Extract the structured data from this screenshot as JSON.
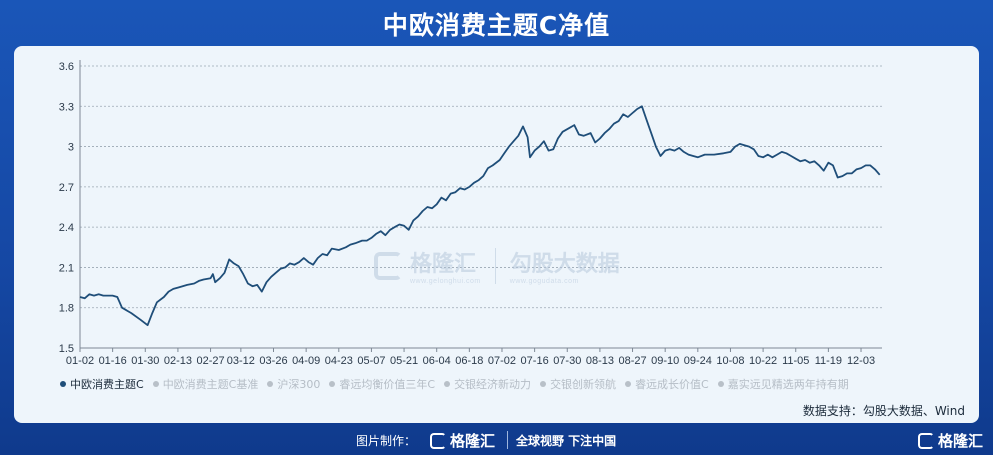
{
  "header": {
    "title": "中欧消费主题C净值"
  },
  "watermark": {
    "brand": "格隆汇",
    "brand_url": "www.gelonghui.com",
    "brand2": "勾股大数据",
    "brand2_url": "www.gogudata.com"
  },
  "legend": [
    {
      "label": "中欧消费主题C",
      "active": true
    },
    {
      "label": "中欧消费主题C基准",
      "active": false
    },
    {
      "label": "沪深300",
      "active": false
    },
    {
      "label": "睿远均衡价值三年C",
      "active": false
    },
    {
      "label": "交银经济新动力",
      "active": false
    },
    {
      "label": "交银创新领航",
      "active": false
    },
    {
      "label": "睿远成长价值C",
      "active": false
    },
    {
      "label": "嘉实远见精选两年持有期",
      "active": false
    }
  ],
  "source": "数据支持：勾股大数据、Wind",
  "footer": {
    "made_by": "图片制作：",
    "brand": "格隆汇",
    "slogan": "全球视野 下注中国",
    "corner_brand": "格隆汇"
  },
  "colors": {
    "line": "#1f4e79",
    "grid": "#9aa6b2",
    "accent": "#1a56b8"
  },
  "chart_data": {
    "type": "line",
    "title": "中欧消费主题C净值",
    "ylim": [
      1.5,
      3.6
    ],
    "yticks": [
      "1.5",
      "1.8",
      "2.1",
      "2.4",
      "2.7",
      "3",
      "3.3",
      "3.6"
    ],
    "ytick_values": [
      1.5,
      1.8,
      2.1,
      2.4,
      2.7,
      3.0,
      3.3,
      3.6
    ],
    "xticks": [
      "01-02",
      "01-16",
      "01-30",
      "02-13",
      "02-27",
      "03-12",
      "03-26",
      "04-09",
      "04-23",
      "05-07",
      "05-21",
      "06-04",
      "06-18",
      "07-02",
      "07-16",
      "07-30",
      "08-13",
      "08-27",
      "09-10",
      "09-24",
      "10-08",
      "10-22",
      "11-05",
      "11-19",
      "12-03"
    ],
    "x_range": [
      "01-02",
      "12-12"
    ],
    "grid": "horizontal dashed",
    "series": [
      {
        "name": "中欧消费主题C",
        "points": [
          [
            "01-02",
            1.88
          ],
          [
            "01-04",
            1.87
          ],
          [
            "01-06",
            1.9
          ],
          [
            "01-08",
            1.89
          ],
          [
            "01-10",
            1.9
          ],
          [
            "01-12",
            1.89
          ],
          [
            "01-14",
            1.89
          ],
          [
            "01-16",
            1.89
          ],
          [
            "01-18",
            1.88
          ],
          [
            "01-20",
            1.8
          ],
          [
            "01-24",
            1.76
          ],
          [
            "01-28",
            1.71
          ],
          [
            "01-31",
            1.67
          ],
          [
            "02-02",
            1.76
          ],
          [
            "02-04",
            1.84
          ],
          [
            "02-07",
            1.88
          ],
          [
            "02-09",
            1.92
          ],
          [
            "02-11",
            1.94
          ],
          [
            "02-13",
            1.95
          ],
          [
            "02-15",
            1.96
          ],
          [
            "02-17",
            1.97
          ],
          [
            "02-20",
            1.98
          ],
          [
            "02-22",
            2.0
          ],
          [
            "02-24",
            2.01
          ],
          [
            "02-27",
            2.02
          ],
          [
            "02-28",
            2.05
          ],
          [
            "03-01",
            1.99
          ],
          [
            "03-03",
            2.02
          ],
          [
            "03-05",
            2.06
          ],
          [
            "03-07",
            2.16
          ],
          [
            "03-09",
            2.13
          ],
          [
            "03-11",
            2.11
          ],
          [
            "03-13",
            2.05
          ],
          [
            "03-15",
            1.98
          ],
          [
            "03-17",
            1.96
          ],
          [
            "03-19",
            1.97
          ],
          [
            "03-21",
            1.92
          ],
          [
            "03-23",
            1.99
          ],
          [
            "03-25",
            2.03
          ],
          [
            "03-27",
            2.06
          ],
          [
            "03-29",
            2.09
          ],
          [
            "03-31",
            2.1
          ],
          [
            "04-02",
            2.13
          ],
          [
            "04-04",
            2.12
          ],
          [
            "04-06",
            2.14
          ],
          [
            "04-08",
            2.17
          ],
          [
            "04-10",
            2.14
          ],
          [
            "04-12",
            2.12
          ],
          [
            "04-14",
            2.17
          ],
          [
            "04-16",
            2.2
          ],
          [
            "04-18",
            2.19
          ],
          [
            "04-20",
            2.24
          ],
          [
            "04-23",
            2.23
          ],
          [
            "04-26",
            2.25
          ],
          [
            "04-28",
            2.27
          ],
          [
            "04-30",
            2.28
          ],
          [
            "05-03",
            2.3
          ],
          [
            "05-05",
            2.3
          ],
          [
            "05-07",
            2.32
          ],
          [
            "05-09",
            2.35
          ],
          [
            "05-11",
            2.37
          ],
          [
            "05-13",
            2.34
          ],
          [
            "05-15",
            2.38
          ],
          [
            "05-17",
            2.4
          ],
          [
            "05-19",
            2.42
          ],
          [
            "05-21",
            2.41
          ],
          [
            "05-23",
            2.38
          ],
          [
            "05-25",
            2.45
          ],
          [
            "05-27",
            2.48
          ],
          [
            "05-29",
            2.52
          ],
          [
            "05-31",
            2.55
          ],
          [
            "06-02",
            2.54
          ],
          [
            "06-04",
            2.57
          ],
          [
            "06-06",
            2.62
          ],
          [
            "06-08",
            2.6
          ],
          [
            "06-10",
            2.65
          ],
          [
            "06-12",
            2.66
          ],
          [
            "06-14",
            2.69
          ],
          [
            "06-16",
            2.68
          ],
          [
            "06-18",
            2.7
          ],
          [
            "06-20",
            2.73
          ],
          [
            "06-22",
            2.75
          ],
          [
            "06-24",
            2.78
          ],
          [
            "06-26",
            2.84
          ],
          [
            "06-28",
            2.86
          ],
          [
            "07-01",
            2.9
          ],
          [
            "07-03",
            2.95
          ],
          [
            "07-05",
            3.0
          ],
          [
            "07-07",
            3.04
          ],
          [
            "07-09",
            3.08
          ],
          [
            "07-11",
            3.15
          ],
          [
            "07-13",
            3.07
          ],
          [
            "07-14",
            2.92
          ],
          [
            "07-16",
            2.97
          ],
          [
            "07-18",
            3.0
          ],
          [
            "07-20",
            3.04
          ],
          [
            "07-22",
            2.97
          ],
          [
            "07-24",
            2.98
          ],
          [
            "07-26",
            3.06
          ],
          [
            "07-28",
            3.11
          ],
          [
            "07-31",
            3.14
          ],
          [
            "08-02",
            3.16
          ],
          [
            "08-04",
            3.09
          ],
          [
            "08-06",
            3.08
          ],
          [
            "08-09",
            3.1
          ],
          [
            "08-11",
            3.03
          ],
          [
            "08-13",
            3.06
          ],
          [
            "08-15",
            3.1
          ],
          [
            "08-17",
            3.13
          ],
          [
            "08-19",
            3.17
          ],
          [
            "08-21",
            3.19
          ],
          [
            "08-23",
            3.24
          ],
          [
            "08-25",
            3.22
          ],
          [
            "08-27",
            3.25
          ],
          [
            "08-29",
            3.28
          ],
          [
            "08-31",
            3.3
          ],
          [
            "09-02",
            3.2
          ],
          [
            "09-04",
            3.1
          ],
          [
            "09-06",
            3.0
          ],
          [
            "09-08",
            2.93
          ],
          [
            "09-10",
            2.97
          ],
          [
            "09-12",
            2.98
          ],
          [
            "09-14",
            2.97
          ],
          [
            "09-16",
            2.99
          ],
          [
            "09-18",
            2.96
          ],
          [
            "09-20",
            2.94
          ],
          [
            "09-22",
            2.93
          ],
          [
            "09-24",
            2.92
          ],
          [
            "09-27",
            2.94
          ],
          [
            "10-01",
            2.94
          ],
          [
            "10-05",
            2.95
          ],
          [
            "10-08",
            2.96
          ],
          [
            "10-10",
            3.0
          ],
          [
            "10-12",
            3.02
          ],
          [
            "10-14",
            3.01
          ],
          [
            "10-16",
            3.0
          ],
          [
            "10-18",
            2.98
          ],
          [
            "10-20",
            2.93
          ],
          [
            "10-22",
            2.92
          ],
          [
            "10-24",
            2.94
          ],
          [
            "10-26",
            2.92
          ],
          [
            "10-28",
            2.94
          ],
          [
            "10-30",
            2.96
          ],
          [
            "11-01",
            2.95
          ],
          [
            "11-03",
            2.93
          ],
          [
            "11-05",
            2.91
          ],
          [
            "11-07",
            2.89
          ],
          [
            "11-09",
            2.9
          ],
          [
            "11-11",
            2.88
          ],
          [
            "11-13",
            2.89
          ],
          [
            "11-15",
            2.86
          ],
          [
            "11-17",
            2.82
          ],
          [
            "11-19",
            2.88
          ],
          [
            "11-21",
            2.86
          ],
          [
            "11-23",
            2.77
          ],
          [
            "11-25",
            2.78
          ],
          [
            "11-27",
            2.8
          ],
          [
            "11-29",
            2.8
          ],
          [
            "12-01",
            2.83
          ],
          [
            "12-03",
            2.84
          ],
          [
            "12-05",
            2.86
          ],
          [
            "12-07",
            2.86
          ],
          [
            "12-09",
            2.83
          ],
          [
            "12-11",
            2.79
          ]
        ]
      }
    ]
  }
}
